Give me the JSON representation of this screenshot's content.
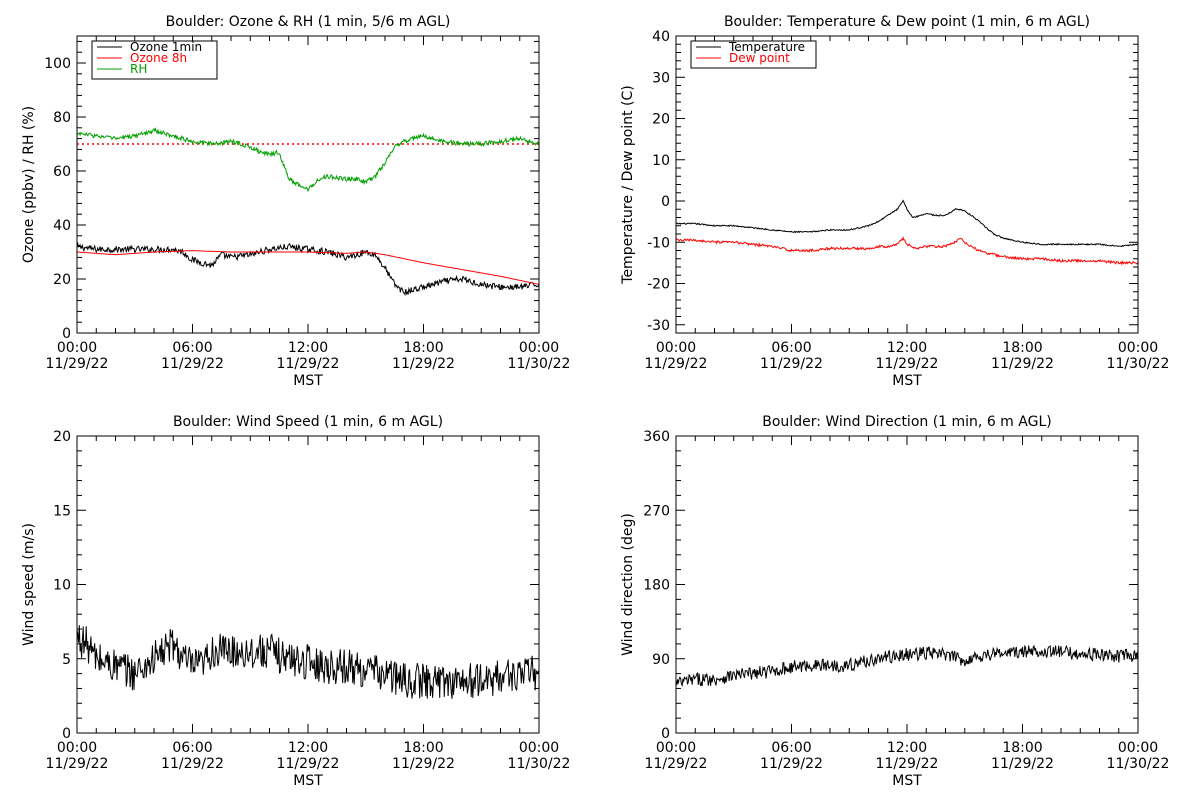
{
  "chart_data": [
    {
      "type": "line",
      "title": "Boulder: Ozone & RH (1 min, 5/6 m AGL)",
      "ylabel": "Ozone (ppbv) / RH (%)",
      "xlabel": "MST",
      "ylim": [
        0,
        110
      ],
      "yticks": [
        0,
        20,
        40,
        60,
        80,
        100
      ],
      "xlim_hours": [
        0,
        24
      ],
      "xticks": [
        {
          "h": 0,
          "time": "00:00",
          "date": "11/29/22"
        },
        {
          "h": 6,
          "time": "06:00",
          "date": "11/29/22"
        },
        {
          "h": 12,
          "time": "12:00",
          "date": "11/29/22"
        },
        {
          "h": 18,
          "time": "18:00",
          "date": "11/29/22"
        },
        {
          "h": 24,
          "time": "00:00",
          "date": "11/30/22"
        }
      ],
      "legend": [
        "Ozone 1min",
        "Ozone 8h",
        "RH"
      ],
      "legend_position": "top-left",
      "reference_lines": [
        {
          "y": 70,
          "color": "#ff0000",
          "style": "dotted"
        }
      ],
      "series": [
        {
          "name": "Ozone 1min",
          "color": "#000000",
          "noise": 1.2,
          "x": [
            0,
            1,
            2,
            3,
            4,
            5,
            5.5,
            6,
            6.5,
            7,
            7.5,
            8,
            9,
            10,
            11,
            12,
            13,
            14,
            15,
            15.5,
            16,
            16.5,
            17,
            18,
            19,
            20,
            21,
            22,
            23,
            24
          ],
          "y": [
            32,
            31,
            31,
            31,
            31,
            31,
            30,
            27,
            26,
            25,
            29,
            28,
            29,
            31,
            32,
            31,
            30,
            28,
            30,
            29,
            24,
            18,
            15,
            17,
            19,
            20,
            18,
            17,
            17,
            18
          ]
        },
        {
          "name": "Ozone 8h",
          "color": "#ff0000",
          "noise": 0,
          "x": [
            0,
            2,
            4,
            6,
            8,
            10,
            12,
            14,
            15,
            16,
            18,
            20,
            22,
            24
          ],
          "y": [
            30,
            29,
            30,
            30.5,
            30,
            30,
            30,
            29.5,
            30,
            29,
            26,
            23.5,
            21,
            18
          ]
        },
        {
          "name": "RH",
          "color": "#00a000",
          "noise": 0.8,
          "x": [
            0,
            1,
            2,
            3,
            4,
            5,
            6,
            7,
            8,
            9,
            9.5,
            10,
            10.5,
            11,
            11.5,
            12,
            12.5,
            13,
            14,
            14.5,
            15,
            15.5,
            16,
            16.5,
            17,
            18,
            19,
            20,
            21,
            22,
            23,
            24
          ],
          "y": [
            74,
            73,
            72,
            73,
            75,
            73,
            71,
            70,
            71,
            69,
            67,
            66,
            67,
            57,
            55,
            53,
            57,
            58,
            57,
            57,
            56,
            58,
            63,
            69,
            71,
            73,
            71,
            70,
            70,
            71,
            72,
            70
          ]
        }
      ]
    },
    {
      "type": "line",
      "title": "Boulder: Temperature & Dew point (1 min, 6 m AGL)",
      "ylabel": "Temperature / Dew point (C)",
      "xlabel": "MST",
      "ylim": [
        -32,
        40
      ],
      "yticks": [
        -30,
        -20,
        -10,
        0,
        10,
        20,
        30,
        40
      ],
      "xlim_hours": [
        0,
        24
      ],
      "xticks": [
        {
          "h": 0,
          "time": "00:00",
          "date": "11/29/22"
        },
        {
          "h": 6,
          "time": "06:00",
          "date": "11/29/22"
        },
        {
          "h": 12,
          "time": "12:00",
          "date": "11/29/22"
        },
        {
          "h": 18,
          "time": "18:00",
          "date": "11/29/22"
        },
        {
          "h": 24,
          "time": "00:00",
          "date": "11/30/22"
        }
      ],
      "legend": [
        "Temperature",
        "Dew point"
      ],
      "legend_position": "top-left",
      "reference_lines": [],
      "series": [
        {
          "name": "Temperature",
          "color": "#000000",
          "noise": 0.15,
          "x": [
            0,
            1,
            2,
            3,
            4,
            5,
            6,
            7,
            8,
            9,
            9.5,
            10,
            10.5,
            11,
            11.5,
            11.8,
            12,
            12.3,
            12.7,
            13,
            13.5,
            14,
            14.5,
            14.8,
            15,
            15.5,
            16,
            16.5,
            17,
            18,
            19,
            20,
            21,
            22,
            23,
            24
          ],
          "y": [
            -5.5,
            -5.5,
            -6,
            -6,
            -6.5,
            -7,
            -7.5,
            -7.5,
            -7,
            -7,
            -6.5,
            -6,
            -5,
            -3.5,
            -2,
            0,
            -2,
            -4,
            -3.5,
            -3,
            -3.5,
            -3.5,
            -2,
            -2,
            -2.5,
            -4,
            -6,
            -8,
            -9,
            -10,
            -10.5,
            -10.5,
            -10.5,
            -10.5,
            -11,
            -10.5
          ]
        },
        {
          "name": "Dew point",
          "color": "#ff0000",
          "noise": 0.3,
          "x": [
            0,
            1,
            2,
            3,
            4,
            5,
            6,
            7,
            8,
            9,
            10,
            10.5,
            11,
            11.5,
            11.8,
            12,
            12.5,
            13,
            14,
            14.5,
            14.8,
            15,
            15.5,
            16,
            16.5,
            17,
            18,
            19,
            20,
            21,
            22,
            23,
            24
          ],
          "y": [
            -9.5,
            -9.5,
            -10,
            -10,
            -10.5,
            -11,
            -12,
            -12,
            -11.5,
            -11.5,
            -11.5,
            -11,
            -11,
            -10.5,
            -9,
            -10.5,
            -11.5,
            -11,
            -11,
            -10,
            -9,
            -10,
            -11.5,
            -12.5,
            -13,
            -13.5,
            -14,
            -14,
            -14.5,
            -14.5,
            -14.5,
            -15,
            -15
          ]
        }
      ]
    },
    {
      "type": "line",
      "title": "Boulder: Wind Speed (1 min, 6 m AGL)",
      "ylabel": "Wind speed (m/s)",
      "xlabel": "MST",
      "ylim": [
        0,
        20
      ],
      "yticks": [
        0,
        5,
        10,
        15,
        20
      ],
      "xlim_hours": [
        0,
        24
      ],
      "xticks": [
        {
          "h": 0,
          "time": "00:00",
          "date": "11/29/22"
        },
        {
          "h": 6,
          "time": "06:00",
          "date": "11/29/22"
        },
        {
          "h": 12,
          "time": "12:00",
          "date": "11/29/22"
        },
        {
          "h": 18,
          "time": "18:00",
          "date": "11/29/22"
        },
        {
          "h": 24,
          "time": "00:00",
          "date": "11/30/22"
        }
      ],
      "legend": [],
      "reference_lines": [],
      "series": [
        {
          "name": "",
          "color": "#000000",
          "noise": 1.2,
          "x": [
            0,
            0.5,
            1,
            2,
            3,
            4,
            5,
            5.5,
            6,
            6.5,
            7,
            8,
            9,
            10,
            11,
            12,
            13,
            14,
            15,
            16,
            17,
            18,
            19,
            20,
            21,
            22,
            23,
            24
          ],
          "y": [
            6.5,
            6,
            5,
            4.5,
            4,
            5,
            6,
            5,
            4.5,
            4.5,
            5.5,
            5.5,
            5.5,
            5.5,
            5,
            4.8,
            4.5,
            4.5,
            4.2,
            4,
            3.5,
            3.5,
            3.5,
            3.5,
            3.5,
            3.8,
            4,
            4
          ]
        }
      ]
    },
    {
      "type": "line",
      "title": "Boulder: Wind Direction (1 min, 6 m AGL)",
      "ylabel": "Wind direction (deg)",
      "xlabel": "MST",
      "ylim": [
        0,
        360
      ],
      "yticks": [
        0,
        90,
        180,
        270,
        360
      ],
      "xlim_hours": [
        0,
        24
      ],
      "xticks": [
        {
          "h": 0,
          "time": "00:00",
          "date": "11/29/22"
        },
        {
          "h": 6,
          "time": "06:00",
          "date": "11/29/22"
        },
        {
          "h": 12,
          "time": "12:00",
          "date": "11/29/22"
        },
        {
          "h": 18,
          "time": "18:00",
          "date": "11/29/22"
        },
        {
          "h": 24,
          "time": "00:00",
          "date": "11/30/22"
        }
      ],
      "legend": [],
      "reference_lines": [],
      "series": [
        {
          "name": "",
          "color": "#000000",
          "noise": 8,
          "x": [
            0,
            1,
            2,
            3,
            4,
            5,
            6,
            7,
            8,
            9,
            10,
            11,
            12,
            13,
            14,
            15,
            16,
            17,
            18,
            19,
            20,
            21,
            22,
            23,
            24
          ],
          "y": [
            60,
            65,
            65,
            70,
            72,
            75,
            80,
            82,
            82,
            82,
            88,
            92,
            95,
            97,
            95,
            88,
            95,
            97,
            98,
            100,
            98,
            96,
            95,
            93,
            95
          ]
        }
      ]
    }
  ]
}
